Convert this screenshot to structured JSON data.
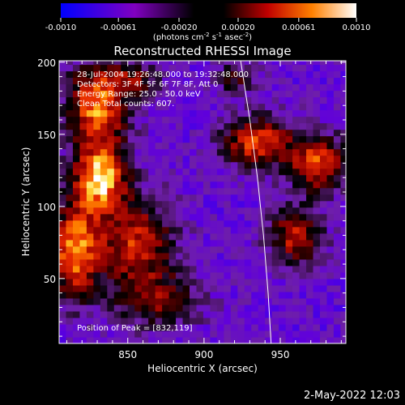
{
  "timestamp": "2-May-2022 12:03",
  "chart_data": {
    "type": "heatmap",
    "title": "Reconstructed RHESSI Image",
    "xlabel": "Heliocentric X (arcsec)",
    "ylabel": "Heliocentric Y (arcsec)",
    "xlim": [
      805,
      993
    ],
    "ylim": [
      5,
      201
    ],
    "xticks": [
      "850",
      "900",
      "950"
    ],
    "yticks": [
      "50",
      "100",
      "150",
      "200"
    ],
    "x_tick_values": [
      850,
      900,
      950
    ],
    "y_tick_values": [
      50,
      100,
      150,
      200
    ],
    "colorbar": {
      "range": [
        -0.001,
        0.001
      ],
      "tick_labels": [
        "-0.0010",
        "-0.00061",
        "-0.00020",
        "0.00020",
        "0.00061",
        "0.0010"
      ],
      "tick_values": [
        -0.001,
        -0.00061,
        -0.0002,
        0.0002,
        0.00061,
        0.001
      ],
      "units": [
        "(photons cm",
        "-2",
        " s",
        "-1",
        " asec",
        "-2",
        ")"
      ]
    },
    "annotations": [
      "28-Jul-2004 19:26:48.000 to 19:32:48.000",
      "Detectors: 3F 4F 5F 6F 7F 8F, Att 0",
      "Energy Range: 25.0 - 50.0 keV",
      "Clean    Total counts: 607."
    ],
    "peak_label": "Position of Peak = [832,119]",
    "peak": [
      832,
      119
    ],
    "limb_curve": [
      [
        924,
        201
      ],
      [
        930,
        160
      ],
      [
        935,
        120
      ],
      [
        939,
        80
      ],
      [
        942,
        40
      ],
      [
        944,
        5
      ]
    ],
    "emission_sources": [
      {
        "x": 830,
        "y": 170,
        "sx": 14,
        "sy": 20,
        "amp": 0.0009
      },
      {
        "x": 832,
        "y": 120,
        "sx": 12,
        "sy": 16,
        "amp": 0.001
      },
      {
        "x": 815,
        "y": 70,
        "sx": 11,
        "sy": 24,
        "amp": 0.0009
      },
      {
        "x": 855,
        "y": 75,
        "sx": 18,
        "sy": 22,
        "amp": 0.0007
      },
      {
        "x": 870,
        "y": 35,
        "sx": 20,
        "sy": 14,
        "amp": 0.00045
      },
      {
        "x": 935,
        "y": 145,
        "sx": 16,
        "sy": 12,
        "amp": 0.0008
      },
      {
        "x": 975,
        "y": 130,
        "sx": 13,
        "sy": 14,
        "amp": 0.0008
      },
      {
        "x": 960,
        "y": 80,
        "sx": 12,
        "sy": 14,
        "amp": 0.0007
      },
      {
        "x": 920,
        "y": 190,
        "sx": 10,
        "sy": 8,
        "amp": 0.0004
      },
      {
        "x": 855,
        "y": 188,
        "sx": 12,
        "sy": 8,
        "amp": 0.00045
      }
    ],
    "background_level": -0.00052
  }
}
